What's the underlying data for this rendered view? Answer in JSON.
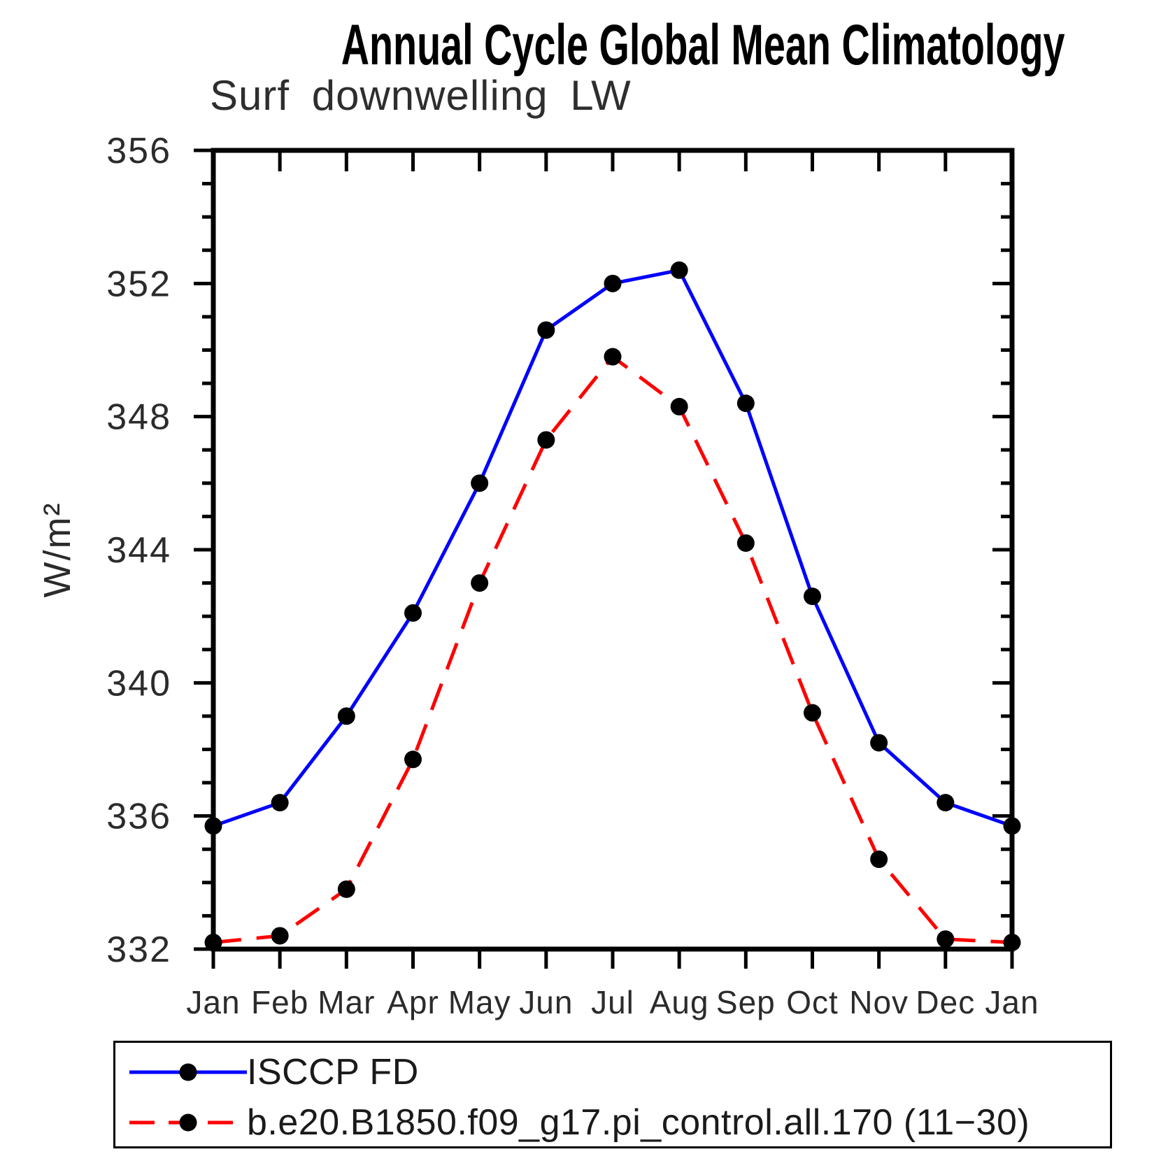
{
  "title": "Annual Cycle Global Mean Climatology",
  "subtitle": "Surf downwelling LW",
  "chart_data": {
    "type": "line",
    "categories": [
      "Jan",
      "Feb",
      "Mar",
      "Apr",
      "May",
      "Jun",
      "Jul",
      "Aug",
      "Sep",
      "Oct",
      "Nov",
      "Dec",
      "Jan"
    ],
    "ylabel": "W/m²",
    "xlabel": "",
    "ylim": [
      332,
      356
    ],
    "ytick_major_step": 4,
    "ytick_minor_step": 1,
    "grid": false,
    "legend_position": "bottom",
    "axis_color": "#000000",
    "tick_label_color": "#2b2b2b",
    "series": [
      {
        "name": "ISCCP FD",
        "color": "#0000ff",
        "line_style": "solid",
        "marker": "filled-circle",
        "marker_color": "#000000",
        "values": [
          335.7,
          336.4,
          339.0,
          342.1,
          346.0,
          350.6,
          352.0,
          352.4,
          348.4,
          342.6,
          338.2,
          336.4,
          335.7
        ]
      },
      {
        "name": "b.e20.B1850.f09_g17.pi_control.all.170 (11−30)",
        "color": "#ff0000",
        "line_style": "dashed",
        "marker": "filled-circle",
        "marker_color": "#000000",
        "values": [
          332.2,
          332.4,
          333.8,
          337.7,
          343.0,
          347.3,
          349.8,
          348.3,
          344.2,
          339.1,
          334.7,
          332.3,
          332.2
        ]
      }
    ]
  }
}
